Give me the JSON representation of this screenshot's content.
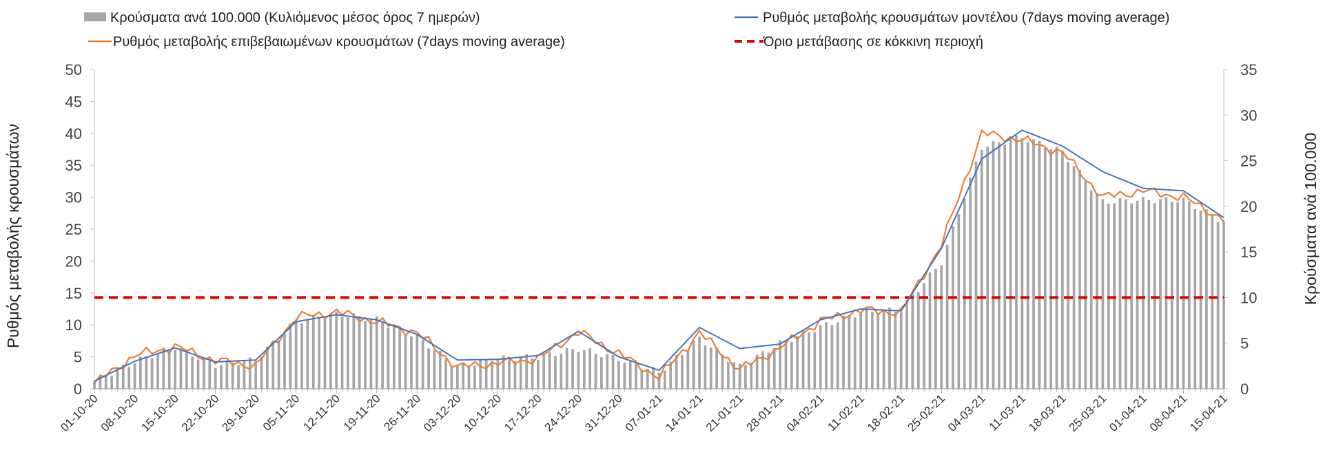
{
  "chart_data": {
    "type": "bar+line",
    "legend": {
      "bars": "Κρούσματα ανά 100.000 (Κυλιόμενος μέσος όρος 7 ημερών)",
      "model": "Ρυθμός μεταβολής κρουσμάτων μοντέλου (7days moving average)",
      "confirmed": "Ρυθμός μεταβολής επιβεβαιωμένων κρουσμάτων (7days moving average)",
      "threshold": "Όριο μετάβασης σε κόκκινη περιοχή"
    },
    "ylabel_left": "Ρυθμός μεταβολής κρουσμάτων",
    "ylabel_right": "Κρούσματα ανά 100.000",
    "ylim_left": [
      0,
      50
    ],
    "ylim_right": [
      0,
      35
    ],
    "yticks_left": [
      0,
      5,
      10,
      15,
      20,
      25,
      30,
      35,
      40,
      45,
      50
    ],
    "yticks_right": [
      0,
      5,
      10,
      15,
      20,
      25,
      30,
      35
    ],
    "x_tick_labels": [
      "01-10-20",
      "08-10-20",
      "15-10-20",
      "22-10-20",
      "29-10-20",
      "05-11-20",
      "12-11-20",
      "19-11-20",
      "26-11-20",
      "03-12-20",
      "10-12-20",
      "17-12-20",
      "24-12-20",
      "31-12-20",
      "07-01-21",
      "14-01-21",
      "21-01-21",
      "28-01-21",
      "04-02-21",
      "11-02-21",
      "18-02-21",
      "25-02-21",
      "04-03-21",
      "11-03-21",
      "18-03-21",
      "25-03-21",
      "01-04-21",
      "08-04-21",
      "15-04-21"
    ],
    "threshold_value": 10,
    "colors": {
      "bars": "#a6a6a6",
      "model": "#4472c4",
      "confirmed": "#ed7d31",
      "threshold": "#e00000"
    },
    "bars_per_100k_weekly": [
      0.8,
      3.0,
      4.6,
      2.6,
      3.2,
      7.4,
      8.2,
      7.6,
      5.7,
      2.4,
      3.3,
      3.5,
      4.4,
      3.3,
      1.8,
      5.5,
      2.4,
      5.0,
      6.8,
      8.4,
      8.7,
      13.9,
      26.5,
      27.6,
      26.0,
      20.5,
      20.7,
      20.7,
      18.3
    ],
    "model_rate_weekly": [
      1.2,
      4.3,
      6.4,
      4.2,
      4.5,
      10.5,
      11.6,
      10.8,
      8.5,
      4.5,
      4.6,
      5.2,
      9.0,
      5.0,
      2.9,
      9.6,
      6.3,
      7.0,
      10.8,
      12.5,
      12.2,
      22.0,
      36.0,
      40.5,
      38.0,
      34.0,
      31.4,
      31.0,
      26.8
    ],
    "confirmed_rate_weekly": [
      0.8,
      5.2,
      6.6,
      4.4,
      3.6,
      11.2,
      12.0,
      10.5,
      8.8,
      3.4,
      4.0,
      4.7,
      8.9,
      5.5,
      1.8,
      8.8,
      3.0,
      6.4,
      10.6,
      12.3,
      12.0,
      22.5,
      40.0,
      39.0,
      37.0,
      30.0,
      31.0,
      30.0,
      26.5
    ]
  }
}
